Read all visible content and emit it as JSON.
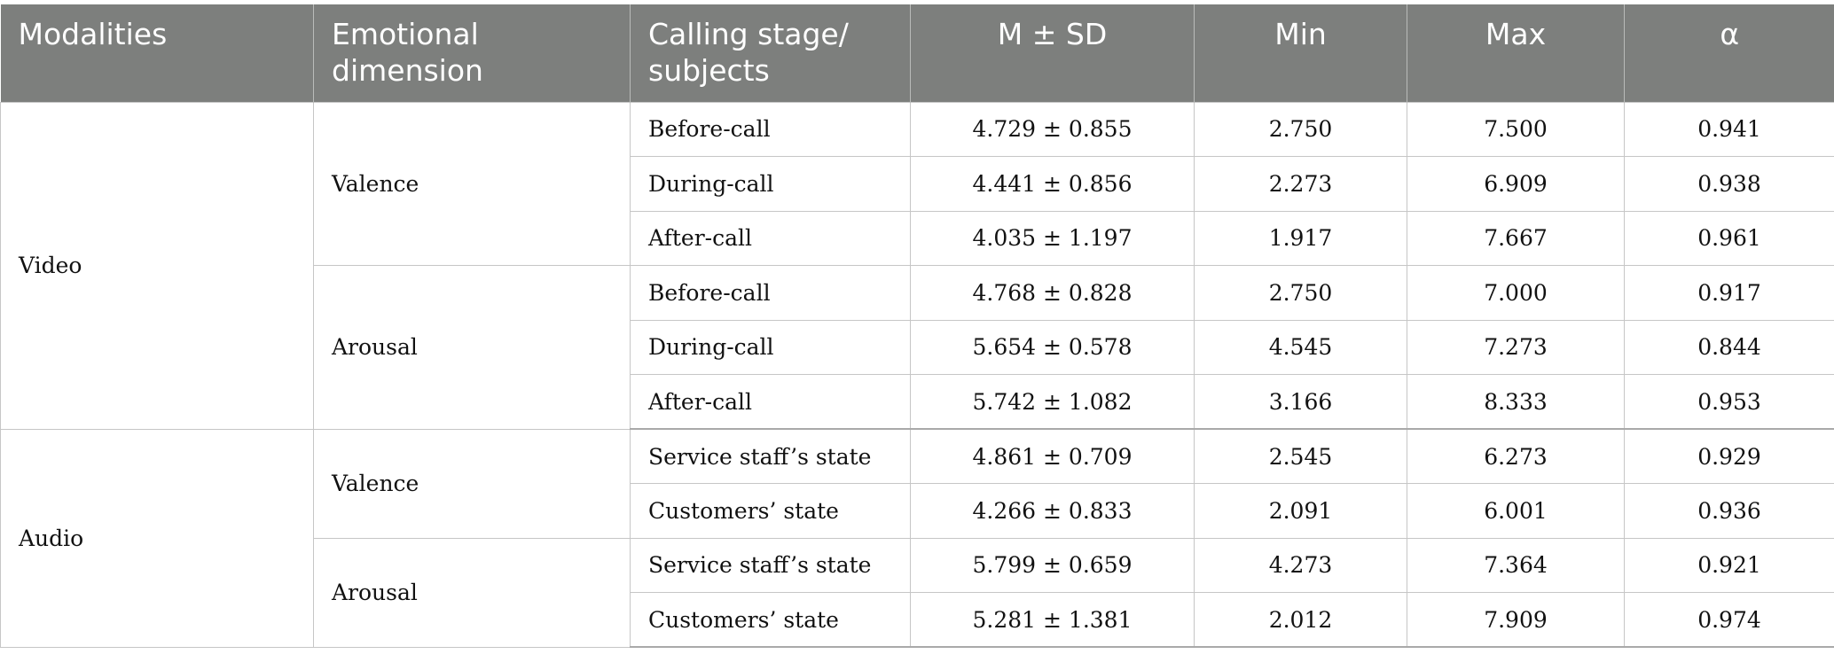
{
  "table": {
    "headers": [
      "Modalities",
      "Emotional dimension",
      "Calling stage/ subjects",
      "M ± SD",
      "Min",
      "Max",
      "α"
    ],
    "header_lines": {
      "modalities": "Modalities",
      "emotional_1": "Emotional",
      "emotional_2": "dimension",
      "stage_1": "Calling stage/",
      "stage_2": "subjects",
      "msd": "M ± SD",
      "min": "Min",
      "max": "Max",
      "alpha": "α"
    },
    "groups": [
      {
        "modality": "Video",
        "dimensions": [
          {
            "name": "Valence",
            "rows": [
              {
                "stage": "Before-call",
                "msd": "4.729 ± 0.855",
                "min": "2.750",
                "max": "7.500",
                "alpha": "0.941"
              },
              {
                "stage": "During-call",
                "msd": "4.441 ± 0.856",
                "min": "2.273",
                "max": "6.909",
                "alpha": "0.938"
              },
              {
                "stage": "After-call",
                "msd": "4.035 ± 1.197",
                "min": "1.917",
                "max": "7.667",
                "alpha": "0.961"
              }
            ]
          },
          {
            "name": "Arousal",
            "rows": [
              {
                "stage": "Before-call",
                "msd": "4.768 ± 0.828",
                "min": "2.750",
                "max": "7.000",
                "alpha": "0.917"
              },
              {
                "stage": "During-call",
                "msd": "5.654 ± 0.578",
                "min": "4.545",
                "max": "7.273",
                "alpha": "0.844"
              },
              {
                "stage": "After-call",
                "msd": "5.742 ± 1.082",
                "min": "3.166",
                "max": "8.333",
                "alpha": "0.953"
              }
            ]
          }
        ]
      },
      {
        "modality": "Audio",
        "dimensions": [
          {
            "name": "Valence",
            "rows": [
              {
                "stage": "Service staff’s state",
                "msd": "4.861 ± 0.709",
                "min": "2.545",
                "max": "6.273",
                "alpha": "0.929"
              },
              {
                "stage": "Customers’ state",
                "msd": "4.266 ± 0.833",
                "min": "2.091",
                "max": "6.001",
                "alpha": "0.936"
              }
            ]
          },
          {
            "name": "Arousal",
            "rows": [
              {
                "stage": "Service staff’s state",
                "msd": "5.799 ± 0.659",
                "min": "4.273",
                "max": "7.364",
                "alpha": "0.921"
              },
              {
                "stage": "Customers’ state",
                "msd": "5.281 ± 1.381",
                "min": "2.012",
                "max": "7.909",
                "alpha": "0.974"
              }
            ]
          }
        ]
      }
    ]
  }
}
